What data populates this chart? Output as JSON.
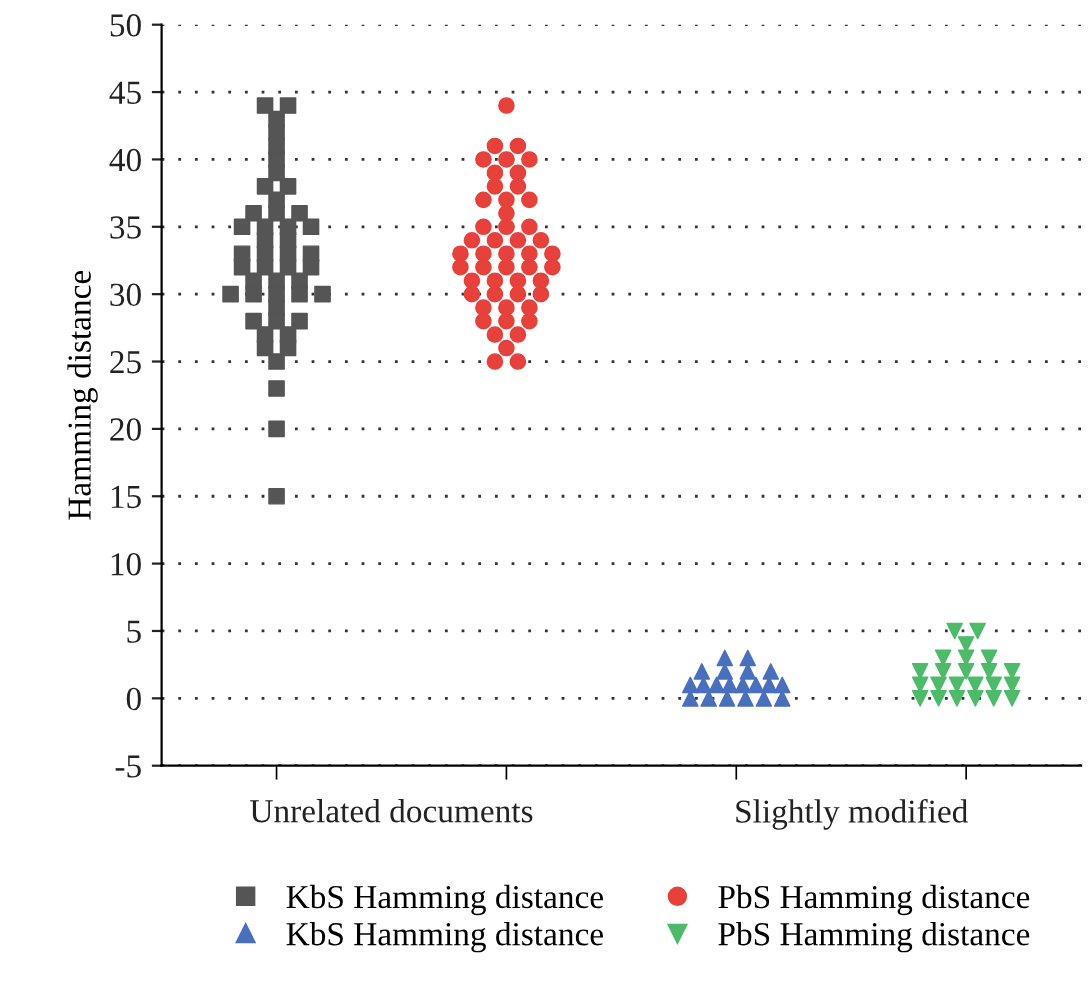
{
  "chart_data": {
    "type": "scatter",
    "ylabel": "Hamming distance",
    "categories": [
      "Unrelated documents",
      "Slightly modified"
    ],
    "ylim": [
      -5,
      50
    ],
    "yticks": [
      -5,
      0,
      5,
      10,
      15,
      20,
      25,
      30,
      35,
      40,
      45,
      50
    ],
    "grid": "y",
    "legend": "bottom",
    "series": [
      {
        "name": "KbS Hamming distance",
        "color": "#555555",
        "marker": "square",
        "x": [
          "Unrelated documents",
          "Unrelated documents",
          "Unrelated documents",
          "Unrelated documents",
          "Unrelated documents",
          "Unrelated documents",
          "Unrelated documents",
          "Unrelated documents",
          "Unrelated documents",
          "Unrelated documents",
          "Unrelated documents",
          "Unrelated documents",
          "Unrelated documents",
          "Unrelated documents",
          "Unrelated documents",
          "Unrelated documents",
          "Unrelated documents",
          "Unrelated documents",
          "Unrelated documents",
          "Unrelated documents",
          "Unrelated documents",
          "Unrelated documents",
          "Unrelated documents",
          "Unrelated documents",
          "Unrelated documents",
          "Unrelated documents",
          "Unrelated documents",
          "Unrelated documents",
          "Unrelated documents",
          "Unrelated documents",
          "Unrelated documents",
          "Unrelated documents",
          "Unrelated documents",
          "Unrelated documents",
          "Unrelated documents",
          "Unrelated documents",
          "Unrelated documents",
          "Unrelated documents",
          "Unrelated documents",
          "Unrelated documents",
          "Unrelated documents",
          "Unrelated documents",
          "Unrelated documents",
          "Unrelated documents",
          "Unrelated documents",
          "Unrelated documents",
          "Unrelated documents"
        ],
        "values": [
          44,
          44,
          43,
          42,
          40,
          41,
          39,
          37,
          38,
          38,
          36,
          36,
          36,
          34,
          35,
          35,
          35,
          35,
          34,
          33,
          33,
          33,
          33,
          32,
          32,
          32,
          32,
          31,
          31,
          31,
          30,
          30,
          30,
          30,
          30,
          29,
          28,
          28,
          28,
          27,
          27,
          26,
          26,
          25,
          23,
          20,
          15
        ]
      },
      {
        "name": "PbS Hamming distance",
        "color": "#e8403a",
        "marker": "circle",
        "x": [
          "Unrelated documents",
          "Unrelated documents",
          "Unrelated documents",
          "Unrelated documents",
          "Unrelated documents",
          "Unrelated documents",
          "Unrelated documents",
          "Unrelated documents",
          "Unrelated documents",
          "Unrelated documents",
          "Unrelated documents",
          "Unrelated documents",
          "Unrelated documents",
          "Unrelated documents",
          "Unrelated documents",
          "Unrelated documents",
          "Unrelated documents",
          "Unrelated documents",
          "Unrelated documents",
          "Unrelated documents",
          "Unrelated documents",
          "Unrelated documents",
          "Unrelated documents",
          "Unrelated documents",
          "Unrelated documents",
          "Unrelated documents",
          "Unrelated documents",
          "Unrelated documents",
          "Unrelated documents",
          "Unrelated documents",
          "Unrelated documents",
          "Unrelated documents",
          "Unrelated documents",
          "Unrelated documents",
          "Unrelated documents",
          "Unrelated documents",
          "Unrelated documents",
          "Unrelated documents",
          "Unrelated documents",
          "Unrelated documents",
          "Unrelated documents",
          "Unrelated documents",
          "Unrelated documents",
          "Unrelated documents",
          "Unrelated documents",
          "Unrelated documents",
          "Unrelated documents",
          "Unrelated documents",
          "Unrelated documents",
          "Unrelated documents"
        ],
        "values": [
          44,
          41,
          41,
          40,
          40,
          40,
          39,
          39,
          38,
          38,
          37,
          37,
          37,
          36,
          35,
          35,
          35,
          34,
          34,
          34,
          34,
          33,
          33,
          33,
          33,
          33,
          32,
          32,
          32,
          32,
          32,
          31,
          31,
          31,
          31,
          30,
          30,
          30,
          30,
          29,
          29,
          29,
          28,
          28,
          28,
          27,
          27,
          26,
          25,
          25
        ]
      },
      {
        "name": "KbS Hamming distance",
        "color": "#4a6fbf",
        "marker": "triangle",
        "x": [
          "Slightly modified",
          "Slightly modified",
          "Slightly modified",
          "Slightly modified",
          "Slightly modified",
          "Slightly modified",
          "Slightly modified",
          "Slightly modified",
          "Slightly modified",
          "Slightly modified",
          "Slightly modified",
          "Slightly modified",
          "Slightly modified",
          "Slightly modified",
          "Slightly modified",
          "Slightly modified",
          "Slightly modified",
          "Slightly modified",
          "Slightly modified",
          "Slightly modified"
        ],
        "values": [
          0,
          0,
          0,
          0,
          0,
          1,
          1,
          1,
          1,
          1,
          0,
          2,
          2,
          2,
          2,
          3,
          3,
          1,
          1,
          1
        ]
      },
      {
        "name": "PbS Hamming distance",
        "color": "#4cbb6a",
        "marker": "triangle_down",
        "x": [
          "Slightly modified",
          "Slightly modified",
          "Slightly modified",
          "Slightly modified",
          "Slightly modified",
          "Slightly modified",
          "Slightly modified",
          "Slightly modified",
          "Slightly modified",
          "Slightly modified",
          "Slightly modified",
          "Slightly modified",
          "Slightly modified",
          "Slightly modified",
          "Slightly modified",
          "Slightly modified",
          "Slightly modified",
          "Slightly modified",
          "Slightly modified",
          "Slightly modified",
          "Slightly modified",
          "Slightly modified",
          "Slightly modified"
        ],
        "values": [
          5,
          5,
          4,
          0,
          0,
          0,
          0,
          0,
          0,
          1,
          1,
          1,
          1,
          1,
          2,
          2,
          2,
          2,
          3,
          3,
          3,
          2,
          1
        ]
      }
    ]
  }
}
